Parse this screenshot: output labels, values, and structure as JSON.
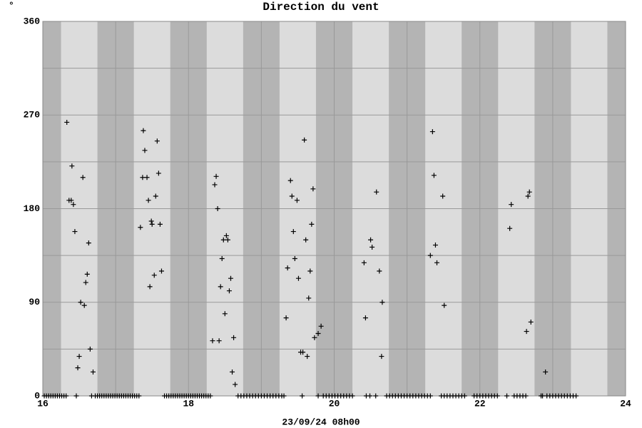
{
  "chart_data": {
    "type": "scatter",
    "title": "Direction du vent",
    "ylabel": "°",
    "xlabel": "23/09/24 08h00",
    "marker": "+",
    "color": "#000000",
    "xlim": [
      16,
      24
    ],
    "ylim": [
      0,
      360
    ],
    "xticks": [
      16,
      18,
      20,
      22,
      24
    ],
    "yticks": [
      0,
      90,
      180,
      270,
      360
    ],
    "x_minor_grid": [
      17,
      19,
      21,
      23
    ],
    "y_minor_grid": [
      45,
      135,
      225,
      315
    ],
    "grid": true,
    "night_bands": [
      [
        16,
        16.25
      ],
      [
        16.75,
        17.25
      ],
      [
        17.75,
        18.25
      ],
      [
        18.75,
        19.25
      ],
      [
        19.75,
        20.25
      ],
      [
        20.75,
        21.25
      ],
      [
        21.75,
        22.25
      ],
      [
        22.75,
        23.25
      ],
      [
        23.75,
        24
      ]
    ],
    "x": [
      16.33,
      16.36,
      16.39,
      16.4,
      16.42,
      16.44,
      16.48,
      16.5,
      16.52,
      16.55,
      16.57,
      16.59,
      16.61,
      16.63,
      16.65,
      16.69,
      17.34,
      17.37,
      17.38,
      17.4,
      17.43,
      17.45,
      17.47,
      17.49,
      17.5,
      17.53,
      17.55,
      17.57,
      17.59,
      17.61,
      17.63,
      18.33,
      18.36,
      18.38,
      18.4,
      18.42,
      18.44,
      18.46,
      18.48,
      18.5,
      18.52,
      18.54,
      18.56,
      18.58,
      18.6,
      18.62,
      18.64,
      19.34,
      19.36,
      19.4,
      19.42,
      19.44,
      19.46,
      19.49,
      19.51,
      19.54,
      19.57,
      19.59,
      19.61,
      19.63,
      19.65,
      19.67,
      19.69,
      19.71,
      19.73,
      19.78,
      19.82,
      20.41,
      20.43,
      20.5,
      20.52,
      20.58,
      20.62,
      20.65,
      20.66,
      21.32,
      21.35,
      21.37,
      21.39,
      21.41,
      21.49,
      21.51,
      22.41,
      22.43,
      22.64,
      22.66,
      22.68,
      22.7,
      22.9,
      16.02,
      16.05,
      16.08,
      16.11,
      16.14,
      16.17,
      16.2,
      16.23,
      16.26,
      16.29,
      16.32,
      16.46,
      16.67,
      16.72,
      16.75,
      16.78,
      16.81,
      16.84,
      16.87,
      16.9,
      16.93,
      16.96,
      16.99,
      17.02,
      17.05,
      17.08,
      17.11,
      17.14,
      17.17,
      17.2,
      17.23,
      17.26,
      17.29,
      17.32,
      17.67,
      17.7,
      17.73,
      17.76,
      17.79,
      17.82,
      17.85,
      17.88,
      17.91,
      17.94,
      17.97,
      18.0,
      18.03,
      18.06,
      18.09,
      18.12,
      18.15,
      18.18,
      18.21,
      18.24,
      18.27,
      18.3,
      18.68,
      18.72,
      18.76,
      18.8,
      18.84,
      18.88,
      18.92,
      18.96,
      19.0,
      19.04,
      19.08,
      19.12,
      19.16,
      19.2,
      19.24,
      19.28,
      19.31,
      19.56,
      19.78,
      19.85,
      19.89,
      19.93,
      19.97,
      20.01,
      20.05,
      20.09,
      20.13,
      20.17,
      20.21,
      20.25,
      20.44,
      20.49,
      20.57,
      20.72,
      20.76,
      20.8,
      20.84,
      20.88,
      20.92,
      20.96,
      21.0,
      21.04,
      21.08,
      21.12,
      21.16,
      21.2,
      21.24,
      21.28,
      21.32,
      21.47,
      21.51,
      21.55,
      21.59,
      21.63,
      21.67,
      21.71,
      21.75,
      21.79,
      21.92,
      21.96,
      22.0,
      22.04,
      22.08,
      22.12,
      22.16,
      22.2,
      22.24,
      22.37,
      22.47,
      22.51,
      22.55,
      22.59,
      22.63,
      22.84,
      22.86,
      22.92,
      22.96,
      23.0,
      23.04,
      23.08,
      23.12,
      23.16,
      23.2,
      23.24,
      23.28,
      23.32
    ],
    "values": [
      263,
      188,
      188,
      221,
      184,
      158,
      27,
      38,
      90,
      210,
      87,
      109,
      117,
      147,
      45,
      23,
      162,
      210,
      255,
      236,
      210,
      188,
      105,
      168,
      165,
      116,
      192,
      245,
      214,
      165,
      120,
      53,
      203,
      211,
      180,
      53,
      105,
      132,
      150,
      79,
      154,
      150,
      101,
      113,
      23,
      56,
      11,
      75,
      123,
      207,
      192,
      158,
      132,
      188,
      113,
      42,
      42,
      246,
      150,
      38,
      94,
      120,
      165,
      199,
      56,
      60,
      67,
      128,
      75,
      150,
      143,
      196,
      120,
      38,
      90,
      135,
      254,
      212,
      145,
      128,
      192,
      87,
      161,
      184,
      62,
      192,
      196,
      71,
      23,
      0,
      0,
      0,
      0,
      0,
      0,
      0,
      0,
      0,
      0,
      0,
      0,
      0,
      0,
      0,
      0,
      0,
      0,
      0,
      0,
      0,
      0,
      0,
      0,
      0,
      0,
      0,
      0,
      0,
      0,
      0,
      0,
      0,
      0,
      0,
      0,
      0,
      0,
      0,
      0,
      0,
      0,
      0,
      0,
      0,
      0,
      0,
      0,
      0,
      0,
      0,
      0,
      0,
      0,
      0,
      0,
      0,
      0,
      0,
      0,
      0,
      0,
      0,
      0,
      0,
      0,
      0,
      0,
      0,
      0,
      0,
      0,
      0,
      0,
      0,
      0,
      0,
      0,
      0,
      0,
      0,
      0,
      0,
      0,
      0,
      0,
      0,
      0,
      0,
      0,
      0,
      0,
      0,
      0,
      0,
      0,
      0,
      0,
      0,
      0,
      0,
      0,
      0,
      0,
      0,
      0,
      0,
      0,
      0,
      0,
      0,
      0,
      0,
      0,
      0,
      0,
      0,
      0,
      0,
      0,
      0,
      0,
      0,
      0,
      0,
      0,
      0,
      0,
      0,
      0,
      0,
      0,
      0,
      0,
      0,
      0,
      0,
      0,
      0,
      0,
      0,
      0
    ]
  }
}
